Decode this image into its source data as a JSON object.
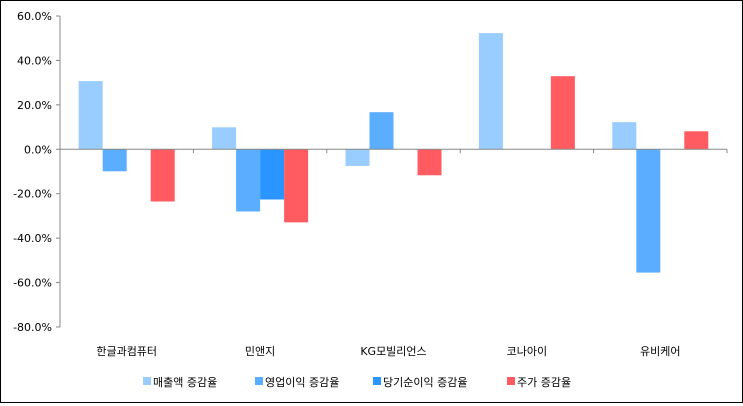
{
  "chart_data": {
    "type": "bar",
    "title": "",
    "xlabel": "",
    "ylabel": "",
    "categories": [
      "한글과컴퓨터",
      "민앤지",
      "KG모빌리언스",
      "코나아이",
      "유비케어"
    ],
    "series": [
      {
        "name": "매출액 증감율",
        "color": "#99CCFF",
        "values": [
          30.7,
          9.9,
          -7.5,
          52.3,
          12.2
        ]
      },
      {
        "name": "영업이익 증감율",
        "color": "#5BADFF",
        "values": [
          -9.9,
          -28.0,
          16.7,
          0,
          -55.5
        ]
      },
      {
        "name": "당기순이익 증감율",
        "color": "#2B95FF",
        "values": [
          0,
          -22.6,
          0,
          0,
          0
        ]
      },
      {
        "name": "주가 증감율",
        "color": "#FF5B61",
        "values": [
          -23.5,
          -32.9,
          -11.7,
          32.9,
          8.1
        ]
      }
    ],
    "ylim": [
      -80,
      60
    ],
    "yticks": [
      60,
      40,
      20,
      0,
      -20,
      -40,
      -60,
      -80
    ],
    "ytick_labels": [
      "60.0%",
      "40.0%",
      "20.0%",
      "0.0%",
      "-20.0%",
      "-40.0%",
      "-60.0%",
      "-80.0%"
    ],
    "grid": false,
    "legend_position": "bottom"
  }
}
